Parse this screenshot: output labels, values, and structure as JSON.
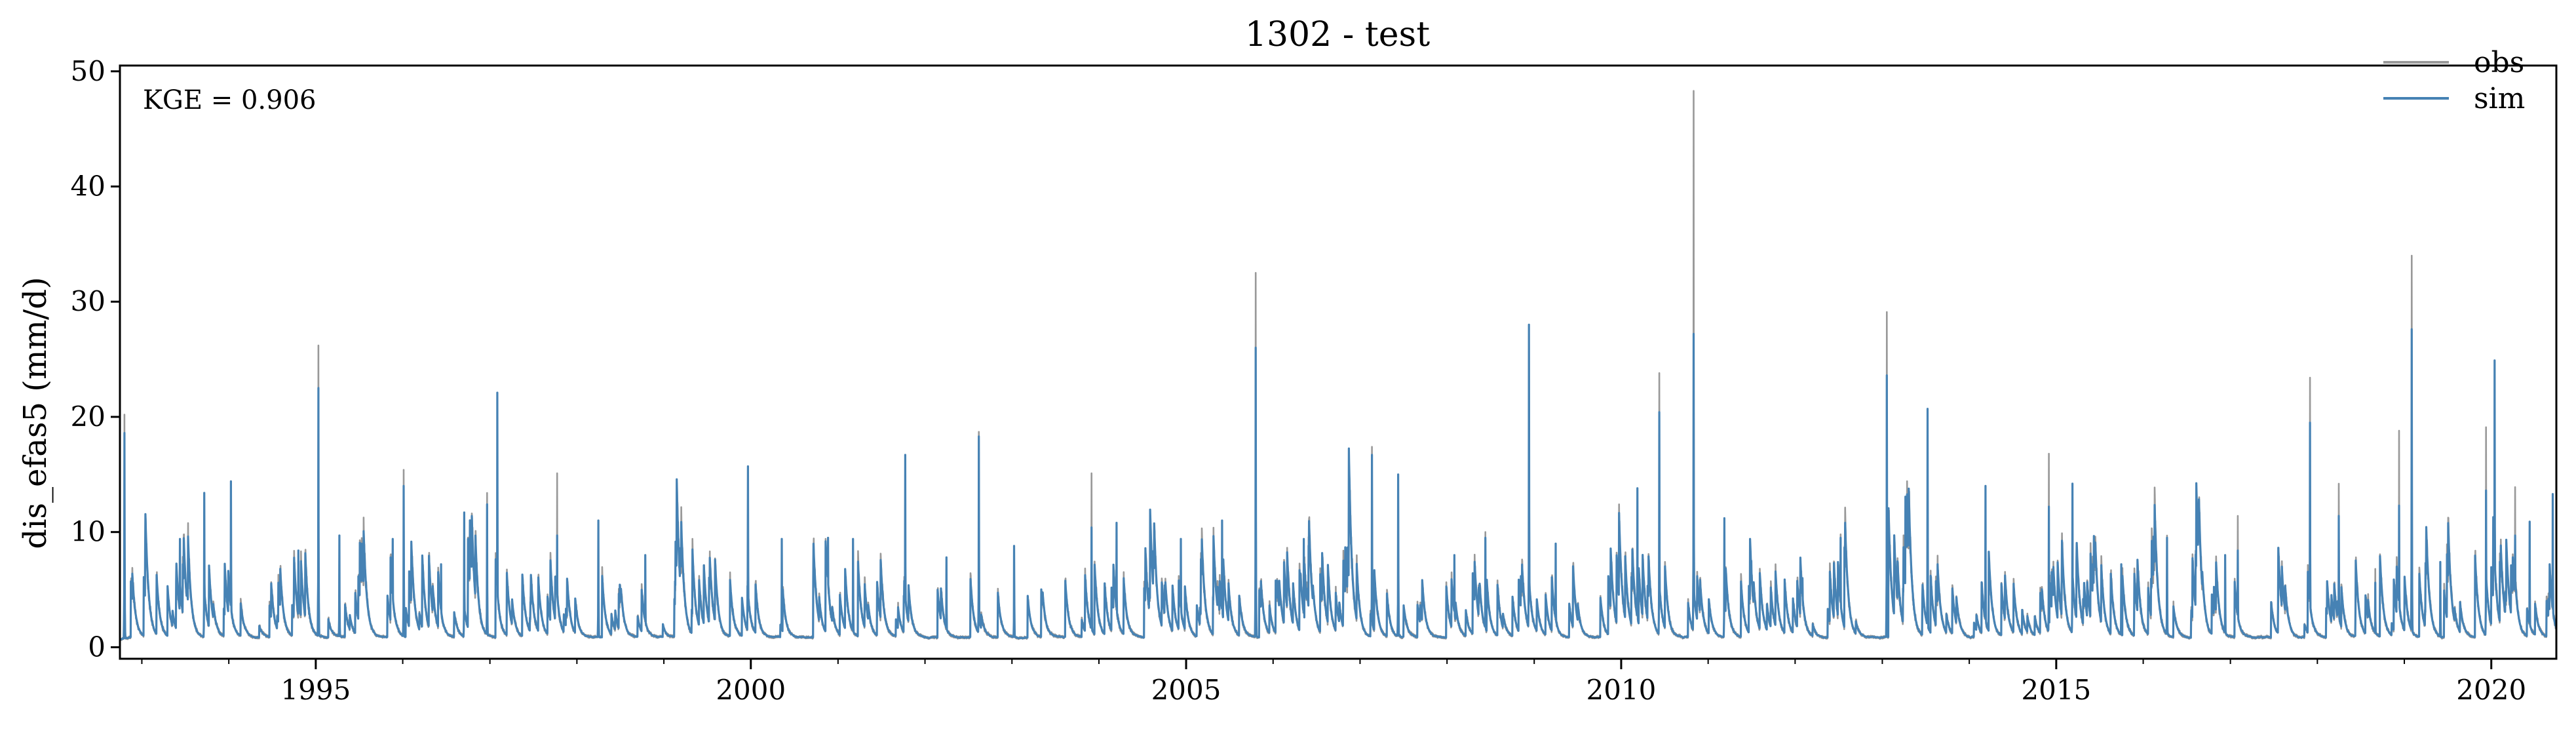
{
  "chart_data": {
    "type": "line",
    "title": "1302 - test",
    "xlabel": "",
    "ylabel": "dis_efas5 (mm/d)",
    "xlim": [
      "1992-10-01",
      "2020-09-30"
    ],
    "ylim": [
      -1,
      50.5
    ],
    "x_ticks": [
      "1995-01-01",
      "2000-01-01",
      "2005-01-01",
      "2010-01-01",
      "2015-01-01",
      "2020-01-01"
    ],
    "x_tick_labels": [
      "1995",
      "2000",
      "2005",
      "2010",
      "2015",
      "2020"
    ],
    "y_ticks": [
      0,
      10,
      20,
      30,
      40,
      50
    ],
    "y_tick_labels": [
      "0",
      "10",
      "20",
      "30",
      "40",
      "50"
    ],
    "grid": false,
    "legend_position": "top-right",
    "annotation": "KGE = 0.906",
    "series": [
      {
        "name": "obs",
        "color": "#999999",
        "peaks": [
          [
            "1992-10-20",
            20.2
          ],
          [
            "1993-01-15",
            8.4
          ],
          [
            "1993-06-10",
            9.4
          ],
          [
            "1993-09-20",
            13.4
          ],
          [
            "1994-01-10",
            14.4
          ],
          [
            "1994-10-20",
            8.4
          ],
          [
            "1995-01-12",
            26.2
          ],
          [
            "1995-04-10",
            9.7
          ],
          [
            "1995-11-20",
            9.4
          ],
          [
            "1996-01-05",
            15.4
          ],
          [
            "1996-06-10",
            7.2
          ],
          [
            "1996-09-15",
            11.7
          ],
          [
            "1996-12-20",
            13.4
          ],
          [
            "1997-02-01",
            22.1
          ],
          [
            "1997-10-10",
            15.1
          ],
          [
            "1998-04-01",
            11.0
          ],
          [
            "1998-10-15",
            8.0
          ],
          [
            "1999-03-10",
            8.6
          ],
          [
            "1999-12-20",
            15.7
          ],
          [
            "2000-05-10",
            9.4
          ],
          [
            "2000-11-20",
            9.5
          ],
          [
            "2001-03-05",
            9.4
          ],
          [
            "2001-10-10",
            16.7
          ],
          [
            "2002-04-01",
            7.8
          ],
          [
            "2002-08-15",
            18.7
          ],
          [
            "2003-01-10",
            8.8
          ],
          [
            "2003-12-01",
            15.1
          ],
          [
            "2004-03-15",
            10.8
          ],
          [
            "2004-12-10",
            9.4
          ],
          [
            "2005-06-01",
            11.0
          ],
          [
            "2005-10-20",
            32.5
          ],
          [
            "2006-05-10",
            9.4
          ],
          [
            "2007-02-20",
            17.4
          ],
          [
            "2007-06-10",
            15.0
          ],
          [
            "2008-02-01",
            8.0
          ],
          [
            "2008-06-10",
            10.0
          ],
          [
            "2008-12-10",
            28.0
          ],
          [
            "2009-04-01",
            9.0
          ],
          [
            "2009-11-20",
            7.0
          ],
          [
            "2010-03-10",
            13.8
          ],
          [
            "2010-06-10",
            23.8
          ],
          [
            "2010-11-01",
            48.3
          ],
          [
            "2011-03-10",
            11.2
          ],
          [
            "2011-07-01",
            7.5
          ],
          [
            "2012-02-01",
            6.0
          ],
          [
            "2012-07-10",
            9.8
          ],
          [
            "2013-01-20",
            29.1
          ],
          [
            "2013-04-10",
            11.4
          ],
          [
            "2013-07-10",
            20.7
          ],
          [
            "2014-03-10",
            14.0
          ],
          [
            "2014-12-01",
            16.8
          ],
          [
            "2015-03-10",
            14.2
          ],
          [
            "2015-10-01",
            7.2
          ],
          [
            "2016-04-10",
            9.7
          ],
          [
            "2016-12-10",
            8.0
          ],
          [
            "2017-02-01",
            11.4
          ],
          [
            "2017-12-01",
            23.4
          ],
          [
            "2018-04-01",
            14.2
          ],
          [
            "2018-09-01",
            6.8
          ],
          [
            "2018-12-10",
            18.8
          ],
          [
            "2019-02-01",
            34.0
          ],
          [
            "2019-06-01",
            7.4
          ],
          [
            "2019-12-10",
            19.1
          ],
          [
            "2020-01-15",
            24.9
          ],
          [
            "2020-04-10",
            13.9
          ],
          [
            "2020-06-10",
            10.9
          ],
          [
            "2020-09-15",
            13.3
          ]
        ]
      },
      {
        "name": "sim",
        "color": "#4682b4",
        "peaks": [
          [
            "1992-10-20",
            18.6
          ],
          [
            "1993-01-15",
            8.4
          ],
          [
            "1993-06-10",
            9.4
          ],
          [
            "1993-09-20",
            13.4
          ],
          [
            "1994-01-10",
            14.4
          ],
          [
            "1994-10-20",
            8.4
          ],
          [
            "1995-01-12",
            22.5
          ],
          [
            "1995-04-10",
            9.7
          ],
          [
            "1995-11-20",
            9.4
          ],
          [
            "1996-01-05",
            14.0
          ],
          [
            "1996-06-10",
            7.2
          ],
          [
            "1996-09-15",
            11.7
          ],
          [
            "1996-12-20",
            12.4
          ],
          [
            "1997-02-01",
            22.1
          ],
          [
            "1997-10-10",
            9.7
          ],
          [
            "1998-04-01",
            11.0
          ],
          [
            "1998-10-15",
            8.0
          ],
          [
            "1999-03-10",
            8.6
          ],
          [
            "1999-12-20",
            15.7
          ],
          [
            "2000-05-10",
            9.4
          ],
          [
            "2000-11-20",
            9.5
          ],
          [
            "2001-03-05",
            9.4
          ],
          [
            "2001-10-10",
            16.7
          ],
          [
            "2002-04-01",
            7.8
          ],
          [
            "2002-08-15",
            18.3
          ],
          [
            "2003-01-10",
            8.8
          ],
          [
            "2003-12-01",
            10.4
          ],
          [
            "2004-03-15",
            10.8
          ],
          [
            "2004-12-10",
            9.4
          ],
          [
            "2005-06-01",
            11.0
          ],
          [
            "2005-10-20",
            26.0
          ],
          [
            "2006-05-10",
            9.4
          ],
          [
            "2007-02-20",
            16.7
          ],
          [
            "2007-06-10",
            15.0
          ],
          [
            "2008-02-01",
            8.0
          ],
          [
            "2008-06-10",
            9.5
          ],
          [
            "2008-12-10",
            28.0
          ],
          [
            "2009-04-01",
            9.0
          ],
          [
            "2009-11-20",
            7.0
          ],
          [
            "2010-03-10",
            13.8
          ],
          [
            "2010-06-10",
            20.4
          ],
          [
            "2010-11-01",
            27.2
          ],
          [
            "2011-03-10",
            11.2
          ],
          [
            "2011-07-01",
            7.5
          ],
          [
            "2012-02-01",
            6.0
          ],
          [
            "2012-07-10",
            9.5
          ],
          [
            "2013-01-20",
            23.6
          ],
          [
            "2013-04-10",
            11.4
          ],
          [
            "2013-07-10",
            20.7
          ],
          [
            "2014-03-10",
            14.0
          ],
          [
            "2014-12-01",
            12.2
          ],
          [
            "2015-03-10",
            14.2
          ],
          [
            "2015-10-01",
            7.2
          ],
          [
            "2016-04-10",
            9.5
          ],
          [
            "2016-12-10",
            8.0
          ],
          [
            "2017-02-01",
            8.4
          ],
          [
            "2017-12-01",
            19.5
          ],
          [
            "2018-04-01",
            11.4
          ],
          [
            "2018-09-01",
            5.6
          ],
          [
            "2018-12-10",
            12.3
          ],
          [
            "2019-02-01",
            27.6
          ],
          [
            "2019-06-01",
            7.4
          ],
          [
            "2019-12-10",
            13.6
          ],
          [
            "2020-01-15",
            24.9
          ],
          [
            "2020-04-10",
            9.7
          ],
          [
            "2020-06-10",
            10.9
          ],
          [
            "2020-09-15",
            13.3
          ]
        ]
      }
    ]
  }
}
